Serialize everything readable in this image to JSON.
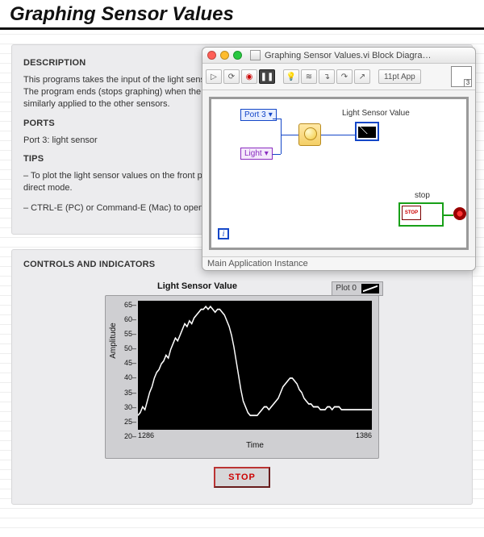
{
  "page": {
    "title": "Graphing Sensor Values"
  },
  "desc": {
    "heading": "DESCRIPTION",
    "body": "This programs takes the input of the light sensor and plots the values on a waveform chart on the front panel.  The program ends (stops graphing) when the user presses stop on the front panel.  This process can be similarly applied to the other sensors."
  },
  "ports": {
    "heading": "PORTS",
    "line": "Port 3: light sensor"
  },
  "tips": {
    "heading": "TIPS",
    "t1": "– To plot the light sensor values on the front panel while running the program, the program must be executed in direct mode.",
    "t2": "– CTRL-E (PC) or Command-E (Mac) to open the block diagram."
  },
  "ctrls": {
    "heading": "CONTROLS AND INDICATORS"
  },
  "window": {
    "title": "Graphing Sensor Values.vi Block Diagra…",
    "status": "Main Application Instance",
    "font_pill": "11pt App",
    "port_ring": "Port 3",
    "light_ring": "Light",
    "chart_label": "Light Sensor Value",
    "stop_label": "stop",
    "stop_mini": "STOP",
    "i_term": "i"
  },
  "chart": {
    "caption": "Light Sensor Value",
    "legend_label": "Plot 0",
    "ylabel": "Amplitude",
    "xlabel": "Time",
    "xlim": [
      1286,
      1386
    ],
    "ylim": [
      20,
      65
    ],
    "ytick_step": 5,
    "background_color": "#000000",
    "line_color": "#ffffff",
    "panel_color": "#cfcfd2",
    "yticks": [
      "65",
      "60",
      "55",
      "50",
      "45",
      "40",
      "35",
      "30",
      "25",
      "20"
    ],
    "xticks": [
      "1286",
      "1386"
    ],
    "values": [
      25,
      26,
      28,
      27,
      30,
      33,
      35,
      38,
      40,
      41,
      43,
      44,
      46,
      45,
      48,
      50,
      52,
      51,
      53,
      55,
      57,
      56,
      58,
      57,
      59,
      60,
      61,
      62,
      62,
      63,
      62,
      63,
      62,
      61,
      62,
      62,
      61,
      60,
      58,
      56,
      53,
      49,
      44,
      39,
      34,
      30,
      28,
      26,
      25,
      25,
      25,
      25,
      26,
      27,
      28,
      28,
      27,
      28,
      29,
      30,
      31,
      33,
      35,
      36,
      37,
      38,
      38,
      37,
      36,
      34,
      33,
      31,
      30,
      29,
      29,
      28,
      28,
      28,
      27,
      27,
      27,
      28,
      28,
      27,
      28,
      28,
      28,
      27,
      27,
      27,
      27,
      27,
      27,
      27,
      27,
      27,
      27,
      27,
      27,
      27,
      27
    ]
  },
  "stop_button": "STOP"
}
